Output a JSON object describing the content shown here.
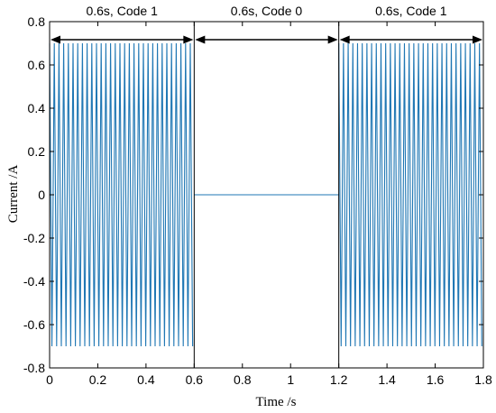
{
  "chart_data": {
    "type": "line",
    "title": "",
    "xlabel": "Time /s",
    "ylabel": "Current /A",
    "xlim": [
      0,
      1.8
    ],
    "ylim": [
      -0.8,
      0.8
    ],
    "xticks": [
      0,
      0.2,
      0.4,
      0.6,
      0.8,
      1,
      1.2,
      1.4,
      1.6,
      1.8
    ],
    "xtick_labels": [
      "0",
      "0.2",
      "0.4",
      "0.6",
      "0.8",
      "1",
      "1.2",
      "1.4",
      "1.6",
      "1.8"
    ],
    "yticks": [
      -0.8,
      -0.6,
      -0.4,
      -0.2,
      0,
      0.2,
      0.4,
      0.6,
      0.8
    ],
    "ytick_labels": [
      "-0.8",
      "-0.6",
      "-0.4",
      "-0.2",
      "0",
      "0.2",
      "0.4",
      "0.6",
      "0.8"
    ],
    "grid": false,
    "series": [
      {
        "color": "#1f77b4",
        "segments": [
          {
            "x_start": 0,
            "x_end": 0.6,
            "amplitude": 0.7,
            "waveform": "oscillating"
          },
          {
            "x_start": 0.6,
            "x_end": 1.2,
            "amplitude": 0,
            "waveform": "flat"
          },
          {
            "x_start": 1.2,
            "x_end": 1.8,
            "amplitude": 0.7,
            "waveform": "oscillating"
          }
        ]
      }
    ],
    "divider_lines_x": [
      0.6,
      1.2
    ],
    "annotations": [
      {
        "label": "0.6s, Code 1",
        "x_start": 0,
        "x_end": 0.6
      },
      {
        "label": "0.6s, Code 0",
        "x_start": 0.6,
        "x_end": 1.2
      },
      {
        "label": "0.6s, Code 1",
        "x_start": 1.2,
        "x_end": 1.8
      }
    ],
    "annotation_arrow_y": 0.7
  }
}
